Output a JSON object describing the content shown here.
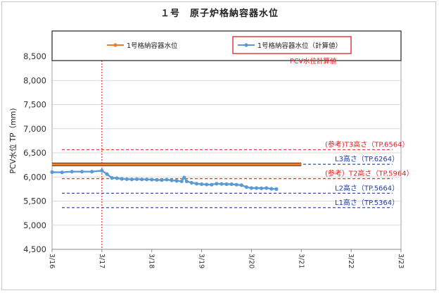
{
  "chart_data": {
    "type": "line",
    "title": "１号　原子炉格納容器水位",
    "ylabel": "PCV水位 TP（mm)",
    "ylim": [
      4500,
      8500
    ],
    "yticks": [
      "4,500",
      "5,000",
      "5,500",
      "6,000",
      "6,500",
      "7,000",
      "7,500",
      "8,000",
      "8,500"
    ],
    "ytick_values": [
      4500,
      5000,
      5500,
      6000,
      6500,
      7000,
      7500,
      8000,
      8500
    ],
    "x_axis": "date",
    "xlim": [
      "3/16",
      "3/23"
    ],
    "xticks": [
      "3/16",
      "3/17",
      "3/18",
      "3/19",
      "3/20",
      "3/21",
      "3/22",
      "3/23"
    ],
    "legend": {
      "placement": "top",
      "entries": [
        {
          "name": "1号格納容器水位",
          "color": "#ED7D31"
        },
        {
          "name": "1号格納容器水位（計算値）",
          "color": "#5B9BD5"
        }
      ],
      "note": "PCV水位計算値",
      "note_color": "#e02020"
    },
    "series": [
      {
        "name": "1号格納容器水位",
        "color": "#ED7D31",
        "x": [
          0,
          5
        ],
        "values": [
          6260,
          6260
        ]
      },
      {
        "name": "1号格納容器水位（計算値）",
        "color": "#5B9BD5",
        "x": [
          0,
          0.2,
          0.4,
          0.6,
          0.8,
          1.0,
          1.1,
          1.2,
          1.3,
          1.4,
          1.5,
          1.6,
          1.7,
          1.8,
          1.9,
          2.0,
          2.1,
          2.2,
          2.3,
          2.4,
          2.5,
          2.6,
          2.65,
          2.7,
          2.8,
          2.9,
          3.0,
          3.1,
          3.2,
          3.3,
          3.4,
          3.5,
          3.6,
          3.7,
          3.8,
          3.9,
          4.0,
          4.1,
          4.2,
          4.3,
          4.4,
          4.5
        ],
        "values": [
          6100,
          6095,
          6110,
          6110,
          6110,
          6130,
          6060,
          5980,
          5975,
          5960,
          5955,
          5950,
          5955,
          5950,
          5950,
          5945,
          5940,
          5935,
          5945,
          5930,
          5920,
          5910,
          5990,
          5910,
          5880,
          5860,
          5850,
          5845,
          5840,
          5860,
          5855,
          5850,
          5850,
          5840,
          5830,
          5790,
          5770,
          5770,
          5765,
          5770,
          5755,
          5750
        ]
      }
    ],
    "reference_lines": [
      {
        "label": "(参考)T3高さ（TP.6564）",
        "value": 6564,
        "color": "#e02020"
      },
      {
        "label": "L3高さ（TP.6264）",
        "value": 6264,
        "color": "#1f3f9f"
      },
      {
        "label": "(参考）T2高さ（TP.5964）",
        "value": 5964,
        "color": "#e02020"
      },
      {
        "label": "L2高さ（TP.5664）",
        "value": 5664,
        "color": "#1f3f9f"
      },
      {
        "label": "L1高さ（TP.5364）",
        "value": 5364,
        "color": "#1f3f9f"
      }
    ],
    "vertical_marker": {
      "x": "3/17",
      "color": "#e02020"
    }
  }
}
